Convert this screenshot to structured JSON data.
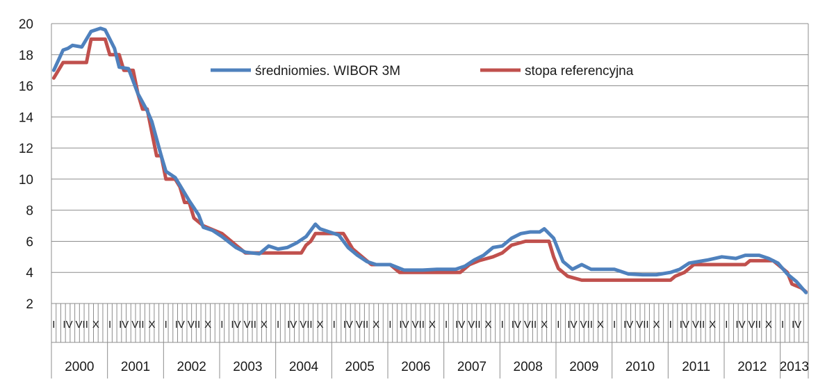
{
  "chart_data": {
    "type": "line",
    "title": "",
    "xlabel": "",
    "ylabel": "",
    "ylim": [
      2,
      20
    ],
    "yticks": [
      2,
      4,
      6,
      8,
      10,
      12,
      14,
      16,
      18,
      20
    ],
    "grid": true,
    "legend_position": "top-center",
    "month_tick_labels": [
      "I",
      "IV",
      "VII",
      "X"
    ],
    "years": [
      "2000",
      "2001",
      "2002",
      "2003",
      "2004",
      "2005",
      "2006",
      "2007",
      "2008",
      "2009",
      "2010",
      "2011",
      "2012",
      "2013"
    ],
    "x_start": "2000-01",
    "x_end": "2013-06",
    "series": [
      {
        "name": "średniomies. WIBOR 3M",
        "color": "#4f81bd",
        "points": [
          [
            "2000-01",
            17.0
          ],
          [
            "2000-03",
            18.3
          ],
          [
            "2000-04",
            18.4
          ],
          [
            "2000-05",
            18.6
          ],
          [
            "2000-07",
            18.5
          ],
          [
            "2000-09",
            19.5
          ],
          [
            "2000-11",
            19.7
          ],
          [
            "2000-12",
            19.6
          ],
          [
            "2001-02",
            18.4
          ],
          [
            "2001-03",
            17.2
          ],
          [
            "2001-05",
            17.1
          ],
          [
            "2001-07",
            15.5
          ],
          [
            "2001-09",
            14.4
          ],
          [
            "2001-10",
            13.7
          ],
          [
            "2001-12",
            11.5
          ],
          [
            "2002-01",
            10.5
          ],
          [
            "2002-03",
            10.1
          ],
          [
            "2002-04",
            9.6
          ],
          [
            "2002-06",
            8.6
          ],
          [
            "2002-08",
            7.7
          ],
          [
            "2002-09",
            6.9
          ],
          [
            "2002-11",
            6.7
          ],
          [
            "2003-01",
            6.3
          ],
          [
            "2003-04",
            5.6
          ],
          [
            "2003-06",
            5.3
          ],
          [
            "2003-09",
            5.2
          ],
          [
            "2003-11",
            5.7
          ],
          [
            "2004-01",
            5.5
          ],
          [
            "2004-03",
            5.6
          ],
          [
            "2004-05",
            5.9
          ],
          [
            "2004-07",
            6.3
          ],
          [
            "2004-09",
            7.1
          ],
          [
            "2004-10",
            6.8
          ],
          [
            "2004-12",
            6.6
          ],
          [
            "2005-02",
            6.4
          ],
          [
            "2005-04",
            5.6
          ],
          [
            "2005-06",
            5.1
          ],
          [
            "2005-08",
            4.7
          ],
          [
            "2005-10",
            4.5
          ],
          [
            "2006-01",
            4.5
          ],
          [
            "2006-04",
            4.15
          ],
          [
            "2006-08",
            4.15
          ],
          [
            "2006-11",
            4.2
          ],
          [
            "2007-03",
            4.2
          ],
          [
            "2007-05",
            4.4
          ],
          [
            "2007-07",
            4.8
          ],
          [
            "2007-09",
            5.1
          ],
          [
            "2007-11",
            5.6
          ],
          [
            "2008-01",
            5.7
          ],
          [
            "2008-03",
            6.2
          ],
          [
            "2008-05",
            6.5
          ],
          [
            "2008-07",
            6.6
          ],
          [
            "2008-09",
            6.6
          ],
          [
            "2008-10",
            6.8
          ],
          [
            "2008-12",
            6.2
          ],
          [
            "2009-02",
            4.7
          ],
          [
            "2009-04",
            4.2
          ],
          [
            "2009-06",
            4.5
          ],
          [
            "2009-08",
            4.2
          ],
          [
            "2009-10",
            4.2
          ],
          [
            "2010-01",
            4.2
          ],
          [
            "2010-04",
            3.9
          ],
          [
            "2010-07",
            3.85
          ],
          [
            "2010-10",
            3.85
          ],
          [
            "2011-01",
            4.0
          ],
          [
            "2011-03",
            4.2
          ],
          [
            "2011-05",
            4.6
          ],
          [
            "2011-07",
            4.7
          ],
          [
            "2011-09",
            4.8
          ],
          [
            "2011-12",
            5.0
          ],
          [
            "2012-03",
            4.9
          ],
          [
            "2012-05",
            5.1
          ],
          [
            "2012-08",
            5.1
          ],
          [
            "2012-10",
            4.9
          ],
          [
            "2012-12",
            4.6
          ],
          [
            "2013-02",
            3.9
          ],
          [
            "2013-04",
            3.4
          ],
          [
            "2013-06",
            2.7
          ]
        ]
      },
      {
        "name": "stopa referencyjna",
        "color": "#c0504d",
        "points": [
          [
            "2000-01",
            16.5
          ],
          [
            "2000-03",
            17.5
          ],
          [
            "2000-08",
            17.5
          ],
          [
            "2000-09",
            19.0
          ],
          [
            "2000-12",
            19.0
          ],
          [
            "2001-01",
            18.0
          ],
          [
            "2001-03",
            18.0
          ],
          [
            "2001-04",
            17.0
          ],
          [
            "2001-06",
            17.0
          ],
          [
            "2001-07",
            15.5
          ],
          [
            "2001-08",
            14.5
          ],
          [
            "2001-09",
            14.5
          ],
          [
            "2001-10",
            13.0
          ],
          [
            "2001-11",
            11.5
          ],
          [
            "2001-12",
            11.5
          ],
          [
            "2002-01",
            10.0
          ],
          [
            "2002-03",
            10.0
          ],
          [
            "2002-04",
            9.5
          ],
          [
            "2002-05",
            8.5
          ],
          [
            "2002-06",
            8.5
          ],
          [
            "2002-07",
            7.5
          ],
          [
            "2002-09",
            7.0
          ],
          [
            "2002-11",
            6.75
          ],
          [
            "2003-01",
            6.5
          ],
          [
            "2003-03",
            6.0
          ],
          [
            "2003-04",
            5.75
          ],
          [
            "2003-05",
            5.5
          ],
          [
            "2003-06",
            5.25
          ],
          [
            "2004-06",
            5.25
          ],
          [
            "2004-07",
            5.75
          ],
          [
            "2004-08",
            6.0
          ],
          [
            "2004-09",
            6.5
          ],
          [
            "2005-03",
            6.5
          ],
          [
            "2005-04",
            6.0
          ],
          [
            "2005-05",
            5.5
          ],
          [
            "2005-07",
            5.0
          ],
          [
            "2005-09",
            4.5
          ],
          [
            "2006-01",
            4.5
          ],
          [
            "2006-03",
            4.0
          ],
          [
            "2007-04",
            4.0
          ],
          [
            "2007-05",
            4.25
          ],
          [
            "2007-06",
            4.5
          ],
          [
            "2007-08",
            4.75
          ],
          [
            "2007-11",
            5.0
          ],
          [
            "2008-01",
            5.25
          ],
          [
            "2008-02",
            5.5
          ],
          [
            "2008-03",
            5.75
          ],
          [
            "2008-06",
            6.0
          ],
          [
            "2008-11",
            6.0
          ],
          [
            "2008-12",
            5.0
          ],
          [
            "2009-01",
            4.25
          ],
          [
            "2009-02",
            4.0
          ],
          [
            "2009-03",
            3.75
          ],
          [
            "2009-06",
            3.5
          ],
          [
            "2011-01",
            3.5
          ],
          [
            "2011-02",
            3.75
          ],
          [
            "2011-04",
            4.0
          ],
          [
            "2011-05",
            4.25
          ],
          [
            "2011-06",
            4.5
          ],
          [
            "2012-05",
            4.5
          ],
          [
            "2012-06",
            4.75
          ],
          [
            "2012-11",
            4.75
          ],
          [
            "2012-12",
            4.5
          ],
          [
            "2013-01",
            4.25
          ],
          [
            "2013-02",
            4.0
          ],
          [
            "2013-03",
            3.25
          ],
          [
            "2013-05",
            3.0
          ],
          [
            "2013-06",
            2.75
          ]
        ]
      }
    ]
  }
}
